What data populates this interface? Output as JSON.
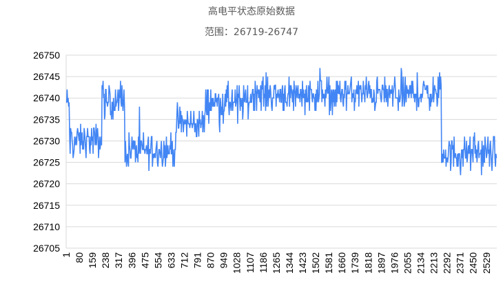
{
  "chart_data": {
    "type": "line",
    "title": "高电平状态原始数据",
    "subtitle": "范围：26719-26747",
    "xlabel": "",
    "ylabel": "",
    "ylim": [
      26705,
      26750
    ],
    "y_ticks": [
      26705,
      26710,
      26715,
      26720,
      26725,
      26730,
      26735,
      26740,
      26745,
      26750
    ],
    "x_range": [
      1,
      2592
    ],
    "x_tick_labels": [
      "1",
      "80",
      "159",
      "238",
      "317",
      "396",
      "475",
      "554",
      "633",
      "712",
      "791",
      "870",
      "949",
      "1028",
      "1107",
      "1186",
      "1265",
      "1344",
      "1423",
      "1502",
      "1581",
      "1660",
      "1739",
      "1818",
      "1897",
      "1976",
      "2055",
      "2134",
      "2213",
      "2292",
      "2371",
      "2450",
      "2529"
    ],
    "grid": true,
    "legend": "none",
    "line_color": "#4285f4",
    "segments": [
      {
        "x_start": 1,
        "x_end": 20,
        "mean": 26739,
        "noise": 3
      },
      {
        "x_start": 20,
        "x_end": 215,
        "mean": 26730,
        "noise": 3
      },
      {
        "x_start": 215,
        "x_end": 225,
        "mean": 26743,
        "noise": 2
      },
      {
        "x_start": 225,
        "x_end": 355,
        "mean": 26739,
        "noise": 3
      },
      {
        "x_start": 355,
        "x_end": 660,
        "mean": 26728,
        "noise": 3
      },
      {
        "x_start": 660,
        "x_end": 840,
        "mean": 26734,
        "noise": 3
      },
      {
        "x_start": 840,
        "x_end": 1110,
        "mean": 26739,
        "noise": 3
      },
      {
        "x_start": 1110,
        "x_end": 2260,
        "mean": 26741,
        "noise": 3
      },
      {
        "x_start": 2260,
        "x_end": 2592,
        "mean": 26727,
        "noise": 3
      }
    ],
    "y_min_observed": 26719,
    "y_max_observed": 26747
  }
}
